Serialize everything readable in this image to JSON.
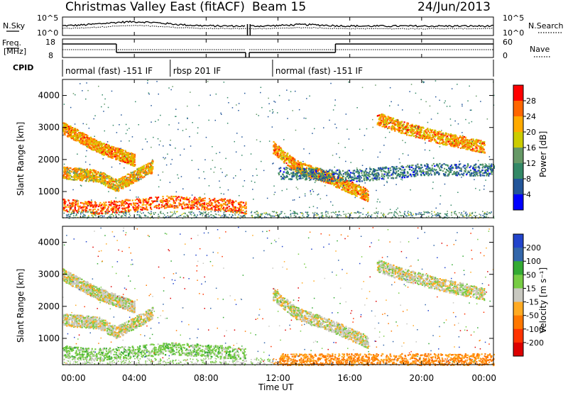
{
  "header": {
    "title": "Christmas Valley East (fitACF)",
    "beam": "Beam 15",
    "date": "24/Jun/2013"
  },
  "xaxis": {
    "label": "Time UT",
    "ticks": [
      "00:00",
      "04:00",
      "08:00",
      "12:00",
      "16:00",
      "20:00",
      "00:00"
    ],
    "range_hours": [
      0,
      24
    ]
  },
  "nsky": {
    "left_label": "N.Sky",
    "ticks": [
      "10^5",
      "10^0"
    ],
    "right_ticks": [
      "10^5",
      "10^0"
    ],
    "right_label": "N.Search"
  },
  "freq": {
    "label_line1": "Freq.",
    "label_line2": "[MHz]",
    "ticks": [
      "18",
      "8"
    ],
    "right_ticks": [
      "60",
      "0"
    ],
    "right_label": "Nave",
    "segments": [
      {
        "start": 0,
        "end": 3.0,
        "freq_level": "high"
      },
      {
        "start": 3.0,
        "end": 10.2,
        "freq_level": "low"
      },
      {
        "start": 10.4,
        "end": 15.2,
        "freq_level": "low"
      },
      {
        "start": 15.2,
        "end": 24,
        "freq_level": "high"
      }
    ]
  },
  "cpid": {
    "label": "CPID",
    "segments": [
      {
        "start": 0,
        "end": 6.0,
        "text": "normal (fast) -151 IF"
      },
      {
        "start": 6.0,
        "end": 11.7,
        "text": "rbsp 201 IF"
      },
      {
        "start": 11.7,
        "end": 24,
        "text": "normal (fast) -151 IF"
      }
    ]
  },
  "power_panel": {
    "ylabel": "Slant Range [km]",
    "yticks": [
      "4000",
      "3000",
      "2000",
      "1000"
    ],
    "colorbar_label": "Power [dB]",
    "colorbar_ticks": [
      "28",
      "24",
      "20",
      "16",
      "12",
      "8",
      "4"
    ],
    "colorbar_colors": [
      "#ff0000",
      "#ff6600",
      "#ffaa00",
      "#cccc00",
      "#669966",
      "#338866",
      "#225599",
      "#0000ff"
    ]
  },
  "velocity_panel": {
    "ylabel": "Slant Range [km]",
    "yticks": [
      "4000",
      "3000",
      "2000",
      "1000"
    ],
    "colorbar_label": "Velocity [m s⁻¹]",
    "colorbar_ticks": [
      "200",
      "100",
      "50",
      "15",
      "-15",
      "-50",
      "-100",
      "-200"
    ],
    "colorbar_colors": [
      "#2244cc",
      "#3366aa",
      "#33aa33",
      "#77cc44",
      "#c8c8c0",
      "#ffaa22",
      "#ff7700",
      "#ff3300",
      "#dd0000"
    ]
  },
  "chart_data": [
    {
      "type": "heatmap",
      "title": "Power",
      "ylabel": "Slant Range [km]",
      "xlabel": "Time UT",
      "ylim": [
        180,
        4500
      ],
      "xlim": [
        0,
        24
      ],
      "zlabel": "Power [dB]",
      "zlim": [
        0,
        30
      ],
      "features": [
        {
          "name": "arc_evening_decreasing",
          "points": [
            [
              0.0,
              3000
            ],
            [
              1.0,
              2700
            ],
            [
              2.0,
              2400
            ],
            [
              3.0,
              2200
            ],
            [
              4.0,
              2000
            ]
          ],
          "power": 22
        },
        {
          "name": "near_range_band",
          "points": [
            [
              0.0,
              600
            ],
            [
              2.0,
              500
            ],
            [
              4.0,
              600
            ],
            [
              6.0,
              700
            ],
            [
              9.0,
              600
            ],
            [
              10.2,
              500
            ]
          ],
          "power": 26
        },
        {
          "name": "mid_band_early",
          "points": [
            [
              0.0,
              1600
            ],
            [
              2.0,
              1500
            ],
            [
              3.0,
              1200
            ],
            [
              4.0,
              1500
            ],
            [
              5.0,
              1800
            ]
          ],
          "power": 20
        },
        {
          "name": "post_noon_arc",
          "points": [
            [
              11.7,
              2400
            ],
            [
              13.0,
              1800
            ],
            [
              15.0,
              1400
            ],
            [
              17.0,
              900
            ]
          ],
          "power": 22
        },
        {
          "name": "afternoon_rising_arc",
          "points": [
            [
              17.5,
              3300
            ],
            [
              19.0,
              3000
            ],
            [
              21.0,
              2700
            ],
            [
              23.5,
              2400
            ]
          ],
          "power": 22
        },
        {
          "name": "sea_scatter_band",
          "points": [
            [
              12.0,
              1600
            ],
            [
              16.0,
              1500
            ],
            [
              20.0,
              1700
            ],
            [
              24.0,
              1700
            ]
          ],
          "power": 8
        }
      ]
    },
    {
      "type": "heatmap",
      "title": "Velocity",
      "ylabel": "Slant Range [km]",
      "xlabel": "Time UT",
      "ylim": [
        180,
        4500
      ],
      "xlim": [
        0,
        24
      ],
      "zlabel": "Velocity [m s⁻¹]",
      "zlim": [
        -200,
        200
      ],
      "features": [
        {
          "name": "arc_evening_decreasing",
          "points": [
            [
              0.0,
              3000
            ],
            [
              1.0,
              2700
            ],
            [
              2.0,
              2400
            ],
            [
              3.0,
              2200
            ],
            [
              4.0,
              2000
            ]
          ],
          "velocity": 0
        },
        {
          "name": "near_range_band",
          "points": [
            [
              0.0,
              600
            ],
            [
              2.0,
              500
            ],
            [
              4.0,
              600
            ],
            [
              6.0,
              700
            ],
            [
              9.0,
              600
            ],
            [
              10.2,
              500
            ]
          ],
          "velocity": 30
        },
        {
          "name": "mid_band_early",
          "points": [
            [
              0.0,
              1600
            ],
            [
              2.0,
              1500
            ],
            [
              3.0,
              1200
            ],
            [
              4.0,
              1500
            ],
            [
              5.0,
              1800
            ]
          ],
          "velocity": 0
        },
        {
          "name": "post_noon_arc",
          "points": [
            [
              11.7,
              2400
            ],
            [
              13.0,
              1800
            ],
            [
              15.0,
              1400
            ],
            [
              17.0,
              900
            ]
          ],
          "velocity": 0
        },
        {
          "name": "afternoon_rising_arc",
          "points": [
            [
              17.5,
              3300
            ],
            [
              19.0,
              3000
            ],
            [
              21.0,
              2700
            ],
            [
              23.5,
              2400
            ]
          ],
          "velocity": 0
        },
        {
          "name": "near_range_afternoon",
          "points": [
            [
              12.0,
              350
            ],
            [
              16.0,
              350
            ],
            [
              20.0,
              350
            ],
            [
              24.0,
              350
            ]
          ],
          "velocity": -50
        }
      ]
    }
  ]
}
